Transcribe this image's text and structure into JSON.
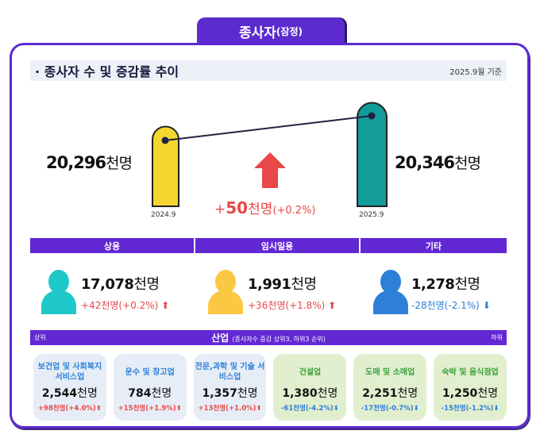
{
  "title": {
    "main": "종사자",
    "sub": "(잠정)"
  },
  "section": {
    "title": "· 종사자 수 및 증감률 추이",
    "date": "2025.9월 기준"
  },
  "trend": {
    "prev": {
      "value": "20,296",
      "unit": "천명",
      "label": "2024.9"
    },
    "curr": {
      "value": "20,346",
      "unit": "천명",
      "label": "2025.9"
    },
    "change_sign": "+",
    "change_value": "50",
    "change_unit": "천명",
    "change_pct": "(+0.2%)",
    "colors": {
      "prev": "#f5d62e",
      "curr": "#129c9a",
      "arrow": "#e84848"
    }
  },
  "categories": [
    {
      "label": "상용",
      "value": "17,078",
      "unit": "천명",
      "change": "+42천명(+0.2%)",
      "dir": "up",
      "color": "#1ec8c8"
    },
    {
      "label": "임시일용",
      "value": "1,991",
      "unit": "천명",
      "change": "+36천명(+1.8%)",
      "dir": "up",
      "color": "#fbc843"
    },
    {
      "label": "기타",
      "value": "1,278",
      "unit": "천명",
      "change": "-28천명(-2.1%)",
      "dir": "down",
      "color": "#2d7fd8"
    }
  ],
  "industry": {
    "left": "상위",
    "right": "하위",
    "title": "산업",
    "note": "(종사자수 증감 상위3, 하위3 순위)",
    "items": [
      {
        "name": "보건업 및 사회복지 서비스업",
        "value": "2,544",
        "unit": "천명",
        "change": "+98천명(+4.0%)",
        "dir": "up"
      },
      {
        "name": "운수 및 창고업",
        "value": "784",
        "unit": "천명",
        "change": "+15천명(+1.9%)",
        "dir": "up"
      },
      {
        "name": "전문,과학 및 기술 서비스업",
        "value": "1,357",
        "unit": "천명",
        "change": "+13천명(+1.0%)",
        "dir": "up"
      },
      {
        "name": "건설업",
        "value": "1,380",
        "unit": "천명",
        "change": "-61천명(-4.2%)",
        "dir": "down"
      },
      {
        "name": "도매 및 소매업",
        "value": "2,251",
        "unit": "천명",
        "change": "-17천명(-0.7%)",
        "dir": "down"
      },
      {
        "name": "숙박 및 음식점업",
        "value": "1,250",
        "unit": "천명",
        "change": "-15천명(-1.2%)",
        "dir": "down"
      }
    ]
  }
}
